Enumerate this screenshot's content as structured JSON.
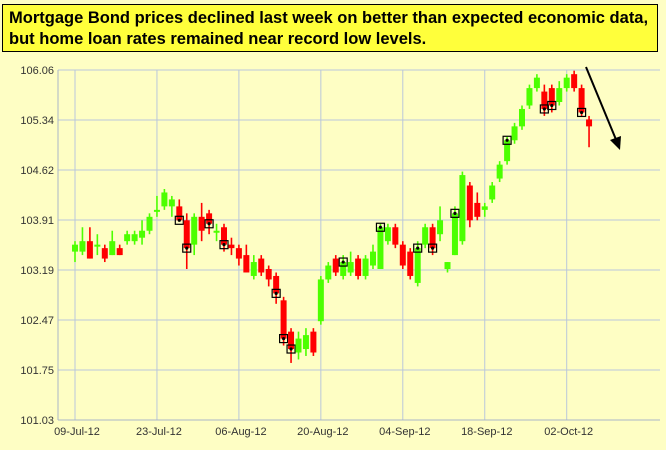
{
  "headline": "Mortgage Bond prices declined last week on better than expected economic data, but home loan rates remained near record low levels.",
  "colors": {
    "background": "#fefec4",
    "headline_bg": "#ffff3b",
    "up": "#4cff00",
    "down": "#ff0000",
    "grid": "#b9c7db",
    "arrow": "#000000"
  },
  "chart_data": {
    "type": "candlestick",
    "title": "Mortgage Bond prices declined last week on better than expected economic data, but home loan rates remained near record low levels.",
    "ylim": [
      101.03,
      106.06
    ],
    "yticks": [
      "101.03",
      "101.75",
      "102.47",
      "103.19",
      "103.91",
      "104.62",
      "105.34",
      "106.06"
    ],
    "xticks": [
      "09-Jul-12",
      "23-Jul-12",
      "06-Aug-12",
      "20-Aug-12",
      "04-Sep-12",
      "18-Sep-12",
      "02-Oct-12"
    ],
    "grid": true,
    "annotations": [
      "downward trend arrow"
    ],
    "candles": [
      {
        "pos": 0,
        "open": 103.45,
        "close": 103.55,
        "high": 103.6,
        "low": 103.3
      },
      {
        "pos": 1,
        "open": 103.45,
        "close": 103.6,
        "high": 103.8,
        "low": 103.4
      },
      {
        "pos": 2,
        "open": 103.6,
        "close": 103.35,
        "high": 103.8,
        "low": 103.35
      },
      {
        "pos": 3,
        "open": 103.55,
        "close": 103.55,
        "high": 103.7,
        "low": 103.4
      },
      {
        "pos": 4,
        "open": 103.5,
        "close": 103.35,
        "high": 103.55,
        "low": 103.3
      },
      {
        "pos": 5,
        "open": 103.4,
        "close": 103.6,
        "high": 103.75,
        "low": 103.4
      },
      {
        "pos": 6,
        "open": 103.5,
        "close": 103.4,
        "high": 103.55,
        "low": 103.4
      },
      {
        "pos": 7,
        "open": 103.6,
        "close": 103.7,
        "high": 103.75,
        "low": 103.55
      },
      {
        "pos": 8,
        "open": 103.6,
        "close": 103.7,
        "high": 103.75,
        "low": 103.55
      },
      {
        "pos": 9,
        "open": 103.65,
        "close": 103.75,
        "high": 103.9,
        "low": 103.55
      },
      {
        "pos": 10,
        "open": 103.75,
        "close": 103.95,
        "high": 104.0,
        "low": 103.7
      },
      {
        "pos": 11,
        "open": 104.05,
        "close": 104.05,
        "high": 104.25,
        "low": 103.95
      },
      {
        "pos": 12,
        "open": 104.1,
        "close": 104.3,
        "high": 104.35,
        "low": 104.05
      },
      {
        "pos": 13,
        "open": 104.1,
        "close": 104.2,
        "high": 104.25,
        "low": 103.95
      },
      {
        "pos": 14,
        "open": 104.1,
        "close": 103.9,
        "high": 104.2,
        "low": 103.9,
        "marker": true
      },
      {
        "pos": 15,
        "open": 103.9,
        "close": 103.5,
        "high": 104.0,
        "low": 103.2,
        "marker": true
      },
      {
        "pos": 16,
        "open": 103.55,
        "close": 103.95,
        "high": 104.0,
        "low": 103.4
      },
      {
        "pos": 17,
        "open": 103.95,
        "close": 103.75,
        "high": 104.15,
        "low": 103.6
      },
      {
        "pos": 18,
        "open": 104.0,
        "close": 103.85,
        "high": 104.05,
        "low": 103.7,
        "marker": true
      },
      {
        "pos": 19,
        "open": 103.75,
        "close": 103.75,
        "high": 103.85,
        "low": 103.6
      },
      {
        "pos": 20,
        "open": 103.8,
        "close": 103.55,
        "high": 103.85,
        "low": 103.45,
        "marker": true
      },
      {
        "pos": 21,
        "open": 103.55,
        "close": 103.5,
        "high": 103.65,
        "low": 103.4
      },
      {
        "pos": 22,
        "open": 103.5,
        "close": 103.35,
        "high": 103.55,
        "low": 103.25
      },
      {
        "pos": 23,
        "open": 103.4,
        "close": 103.15,
        "high": 103.55,
        "low": 103.15
      },
      {
        "pos": 24,
        "open": 103.1,
        "close": 103.3,
        "high": 103.4,
        "low": 103.05
      },
      {
        "pos": 25,
        "open": 103.35,
        "close": 103.15,
        "high": 103.4,
        "low": 103.1
      },
      {
        "pos": 26,
        "open": 103.2,
        "close": 103.05,
        "high": 103.25,
        "low": 102.95
      },
      {
        "pos": 27,
        "open": 103.1,
        "close": 102.85,
        "high": 103.15,
        "low": 102.7,
        "marker": true
      },
      {
        "pos": 28,
        "open": 102.75,
        "close": 102.2,
        "high": 102.8,
        "low": 102.1,
        "marker": true
      },
      {
        "pos": 29,
        "open": 102.3,
        "close": 102.05,
        "high": 102.35,
        "low": 101.85,
        "marker": true
      },
      {
        "pos": 30,
        "open": 102.0,
        "close": 102.2,
        "high": 102.3,
        "low": 101.9
      },
      {
        "pos": 31,
        "open": 102.05,
        "close": 102.25,
        "high": 102.35,
        "low": 101.95
      },
      {
        "pos": 32,
        "open": 102.3,
        "close": 102.0,
        "high": 102.35,
        "low": 101.95
      },
      {
        "pos": 33,
        "open": 102.45,
        "close": 103.05,
        "high": 103.1,
        "low": 102.4
      },
      {
        "pos": 34,
        "open": 103.05,
        "close": 103.25,
        "high": 103.3,
        "low": 103.0
      },
      {
        "pos": 35,
        "open": 103.35,
        "close": 103.15,
        "high": 103.4,
        "low": 103.1
      },
      {
        "pos": 36,
        "open": 103.1,
        "close": 103.3,
        "high": 103.4,
        "low": 103.05,
        "marker": true
      },
      {
        "pos": 37,
        "open": 103.15,
        "close": 103.3,
        "high": 103.45,
        "low": 103.1
      },
      {
        "pos": 38,
        "open": 103.35,
        "close": 103.1,
        "high": 103.4,
        "low": 103.05
      },
      {
        "pos": 39,
        "open": 103.1,
        "close": 103.35,
        "high": 103.4,
        "low": 103.05
      },
      {
        "pos": 40,
        "open": 103.25,
        "close": 103.45,
        "high": 103.55,
        "low": 103.2
      },
      {
        "pos": 41,
        "open": 103.2,
        "close": 103.8,
        "high": 103.85,
        "low": 103.2,
        "marker": true
      },
      {
        "pos": 42,
        "open": 103.6,
        "close": 103.8,
        "high": 103.85,
        "low": 103.55
      },
      {
        "pos": 43,
        "open": 103.8,
        "close": 103.55,
        "high": 103.85,
        "low": 103.5
      },
      {
        "pos": 44,
        "open": 103.55,
        "close": 103.25,
        "high": 103.6,
        "low": 103.2
      },
      {
        "pos": 45,
        "open": 103.45,
        "close": 103.1,
        "high": 103.5,
        "low": 103.05
      },
      {
        "pos": 46,
        "open": 103.0,
        "close": 103.5,
        "high": 103.6,
        "low": 102.95,
        "marker": true
      },
      {
        "pos": 47,
        "open": 103.55,
        "close": 103.8,
        "high": 103.85,
        "low": 103.5
      },
      {
        "pos": 48,
        "open": 103.8,
        "close": 103.5,
        "high": 103.85,
        "low": 103.4,
        "marker": true
      },
      {
        "pos": 49,
        "open": 103.7,
        "close": 103.9,
        "high": 104.1,
        "low": 103.6
      },
      {
        "pos": 50,
        "open": 103.2,
        "close": 103.3,
        "high": 103.3,
        "low": 103.15
      },
      {
        "pos": 51,
        "open": 103.4,
        "close": 104.0,
        "high": 104.1,
        "low": 103.4,
        "marker": true
      },
      {
        "pos": 52,
        "open": 103.6,
        "close": 104.55,
        "high": 104.6,
        "low": 103.55
      },
      {
        "pos": 53,
        "open": 104.4,
        "close": 103.9,
        "high": 104.45,
        "low": 103.8
      },
      {
        "pos": 54,
        "open": 104.15,
        "close": 103.95,
        "high": 104.3,
        "low": 103.9
      },
      {
        "pos": 55,
        "open": 104.05,
        "close": 104.1,
        "high": 104.15,
        "low": 103.95
      },
      {
        "pos": 56,
        "open": 104.2,
        "close": 104.4,
        "high": 104.45,
        "low": 104.15
      },
      {
        "pos": 57,
        "open": 104.5,
        "close": 104.7,
        "high": 104.75,
        "low": 104.45
      },
      {
        "pos": 58,
        "open": 104.75,
        "close": 105.05,
        "high": 105.1,
        "low": 104.7,
        "marker": true
      },
      {
        "pos": 59,
        "open": 105.05,
        "close": 105.25,
        "high": 105.3,
        "low": 105.0
      },
      {
        "pos": 60,
        "open": 105.25,
        "close": 105.5,
        "high": 105.55,
        "low": 105.2
      },
      {
        "pos": 61,
        "open": 105.55,
        "close": 105.8,
        "high": 105.85,
        "low": 105.5
      },
      {
        "pos": 62,
        "open": 105.8,
        "close": 105.95,
        "high": 106.0,
        "low": 105.75
      },
      {
        "pos": 63,
        "open": 105.75,
        "close": 105.5,
        "high": 105.85,
        "low": 105.4,
        "marker": true
      },
      {
        "pos": 64,
        "open": 105.8,
        "close": 105.55,
        "high": 105.85,
        "low": 105.45,
        "marker": true
      },
      {
        "pos": 65,
        "open": 105.6,
        "close": 105.8,
        "high": 105.9,
        "low": 105.55
      },
      {
        "pos": 66,
        "open": 105.8,
        "close": 105.95,
        "high": 106.0,
        "low": 105.75
      },
      {
        "pos": 67,
        "open": 106.0,
        "close": 105.8,
        "high": 106.05,
        "low": 105.75
      },
      {
        "pos": 68,
        "open": 105.8,
        "close": 105.45,
        "high": 105.85,
        "low": 105.4,
        "marker": true
      },
      {
        "pos": 69,
        "open": 105.35,
        "close": 105.25,
        "high": 105.4,
        "low": 104.95
      }
    ]
  }
}
